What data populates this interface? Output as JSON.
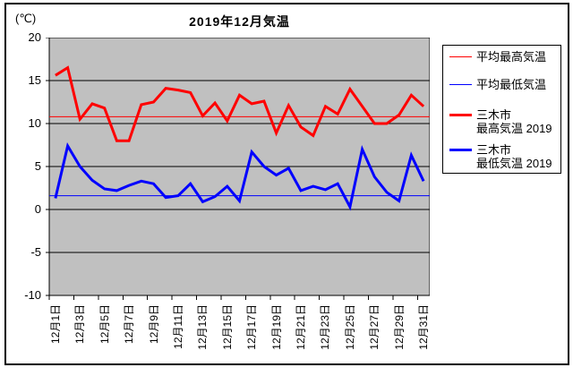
{
  "title": "2019年12月気温",
  "y_axis": {
    "unit_label": "(℃)",
    "ticks": [
      "20",
      "15",
      "10",
      "5",
      "0",
      "-5",
      "-10"
    ]
  },
  "x_axis": {
    "labels": [
      "12月1日",
      "12月3日",
      "12月5日",
      "12月7日",
      "12月9日",
      "12月11日",
      "12月13日",
      "12月15日",
      "12月17日",
      "12月19日",
      "12月21日",
      "12月23日",
      "12月25日",
      "12月27日",
      "12月29日",
      "12月31日"
    ]
  },
  "legend": {
    "items": [
      {
        "lines": [
          "平均最高気温"
        ],
        "color": "#ff0000",
        "thick": false
      },
      {
        "lines": [
          "平均最低気温"
        ],
        "color": "#0000ff",
        "thick": false
      },
      {
        "lines": [
          "三木市",
          "最高気温 2019"
        ],
        "color": "#ff0000",
        "thick": true
      },
      {
        "lines": [
          "三木市",
          "最低気温 2019"
        ],
        "color": "#0000ff",
        "thick": true
      }
    ]
  },
  "colors": {
    "max_line": "#ff0000",
    "min_line": "#0000ff",
    "plot_background": "#c0c0c0",
    "grid": "#000000"
  },
  "chart_data": {
    "type": "line",
    "title": "2019年12月気温",
    "ylabel": "(℃)",
    "ylim": [
      -10,
      20
    ],
    "ytick_step": 5,
    "grid": true,
    "legend_position": "right",
    "plot_bg": "#c0c0c0",
    "n_points": 31,
    "x_label_interval": 2,
    "x_tick_labels": [
      "12月1日",
      "12月3日",
      "12月5日",
      "12月7日",
      "12月9日",
      "12月11日",
      "12月13日",
      "12月15日",
      "12月17日",
      "12月19日",
      "12月21日",
      "12月23日",
      "12月25日",
      "12月27日",
      "12月29日",
      "12月31日"
    ],
    "series": [
      {
        "name": "平均最高気温",
        "color": "#ff0000",
        "stroke_width": 1,
        "constant": 10.8
      },
      {
        "name": "平均最低気温",
        "color": "#0000ff",
        "stroke_width": 1,
        "constant": 1.6
      },
      {
        "name": "三木市 最高気温 2019",
        "color": "#ff0000",
        "stroke_width": 3,
        "values": [
          15.6,
          16.5,
          10.5,
          12.3,
          11.8,
          8.0,
          8.0,
          12.2,
          12.5,
          14.1,
          13.9,
          13.6,
          10.9,
          12.4,
          10.3,
          13.3,
          12.3,
          12.6,
          8.9,
          12.1,
          9.6,
          8.6,
          12.0,
          11.1,
          14.0,
          12.0,
          10.0,
          10.0,
          11.0,
          13.3,
          12.0
        ]
      },
      {
        "name": "三木市 最低気温 2019",
        "color": "#0000ff",
        "stroke_width": 3,
        "values": [
          1.3,
          7.4,
          5.0,
          3.4,
          2.4,
          2.2,
          2.8,
          3.3,
          3.0,
          1.4,
          1.6,
          3.0,
          0.9,
          1.5,
          2.7,
          1.0,
          6.7,
          5.0,
          4.0,
          4.8,
          2.2,
          2.7,
          2.3,
          3.0,
          0.3,
          7.0,
          3.8,
          2.0,
          1.0,
          6.3,
          3.3
        ]
      }
    ]
  }
}
